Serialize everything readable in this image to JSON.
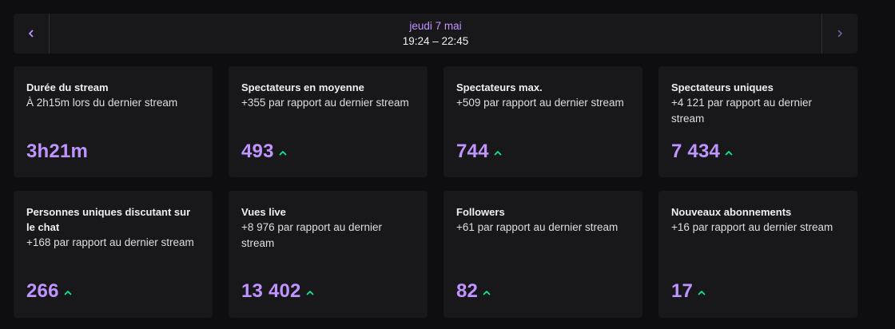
{
  "date_nav": {
    "prev_icon": "chevron-left-icon",
    "next_icon": "chevron-right-icon",
    "day": "jeudi 7 mai",
    "time_range": "19:24 – 22:45"
  },
  "colors": {
    "accent": "#bf94ff",
    "trend_up": "#00f593",
    "card_bg": "#18181b",
    "page_bg": "#0e0e10"
  },
  "cards": [
    {
      "title": "Durée du stream",
      "subtitle": "À 2h15m lors du dernier stream",
      "value": "3h21m",
      "trend": ""
    },
    {
      "title": "Spectateurs en moyenne",
      "subtitle": "+355 par rapport au dernier stream",
      "value": "493",
      "trend": "up"
    },
    {
      "title": "Spectateurs max.",
      "subtitle": "+509 par rapport au dernier stream",
      "value": "744",
      "trend": "up"
    },
    {
      "title": "Spectateurs uniques",
      "subtitle": "+4 121 par rapport au dernier stream",
      "value": "7 434",
      "trend": "up"
    },
    {
      "title": "Personnes uniques discutant sur le chat",
      "subtitle": "+168 par rapport au dernier stream",
      "value": "266",
      "trend": "up"
    },
    {
      "title": "Vues live",
      "subtitle": "+8 976 par rapport au dernier stream",
      "value": "13 402",
      "trend": "up"
    },
    {
      "title": "Followers",
      "subtitle": "+61 par rapport au dernier stream",
      "value": "82",
      "trend": "up"
    },
    {
      "title": "Nouveaux abonnements",
      "subtitle": "+16 par rapport au dernier stream",
      "value": "17",
      "trend": "up"
    }
  ]
}
